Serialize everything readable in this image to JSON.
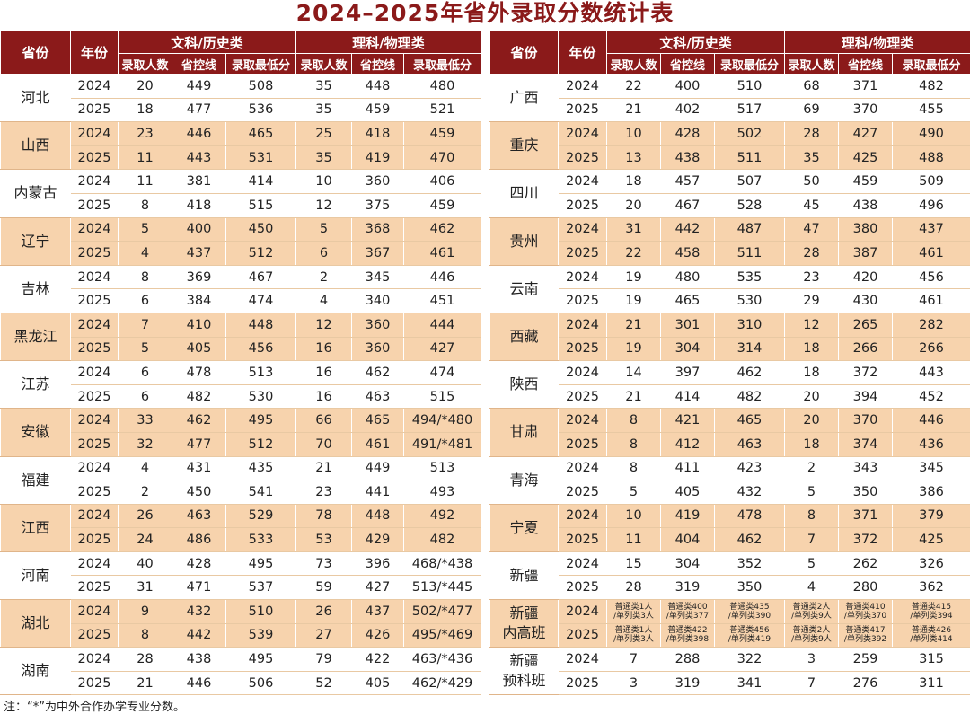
{
  "title": "2024–2025年省外录取分数统计表",
  "note": "注：“*”为中外合作办学专业分数。",
  "colors": {
    "header_bg": "#8b1a1a",
    "title": "#8b1a1a",
    "band": "#f7d3ad"
  },
  "headers": {
    "province": "省份",
    "year": "年份",
    "liberal": "文科/历史类",
    "science": "理科/物理类",
    "admitted": "录取人数",
    "control_line": "省控线",
    "min_score": "录取最低分"
  },
  "left_table": [
    {
      "province": "河北",
      "rows": [
        [
          "2024",
          "20",
          "449",
          "508",
          "35",
          "448",
          "480"
        ],
        [
          "2025",
          "18",
          "477",
          "536",
          "35",
          "459",
          "521"
        ]
      ]
    },
    {
      "province": "山西",
      "rows": [
        [
          "2024",
          "23",
          "446",
          "465",
          "25",
          "418",
          "459"
        ],
        [
          "2025",
          "11",
          "443",
          "531",
          "35",
          "419",
          "470"
        ]
      ]
    },
    {
      "province": "内蒙古",
      "rows": [
        [
          "2024",
          "11",
          "381",
          "414",
          "10",
          "360",
          "406"
        ],
        [
          "2025",
          "8",
          "418",
          "515",
          "12",
          "375",
          "459"
        ]
      ]
    },
    {
      "province": "辽宁",
      "rows": [
        [
          "2024",
          "5",
          "400",
          "450",
          "5",
          "368",
          "462"
        ],
        [
          "2025",
          "4",
          "437",
          "512",
          "6",
          "367",
          "461"
        ]
      ]
    },
    {
      "province": "吉林",
      "rows": [
        [
          "2024",
          "8",
          "369",
          "467",
          "2",
          "345",
          "446"
        ],
        [
          "2025",
          "6",
          "384",
          "474",
          "4",
          "340",
          "451"
        ]
      ]
    },
    {
      "province": "黑龙江",
      "rows": [
        [
          "2024",
          "7",
          "410",
          "448",
          "12",
          "360",
          "444"
        ],
        [
          "2025",
          "5",
          "405",
          "456",
          "16",
          "360",
          "427"
        ]
      ]
    },
    {
      "province": "江苏",
      "rows": [
        [
          "2024",
          "6",
          "478",
          "513",
          "16",
          "462",
          "474"
        ],
        [
          "2025",
          "6",
          "482",
          "530",
          "16",
          "463",
          "515"
        ]
      ]
    },
    {
      "province": "安徽",
      "rows": [
        [
          "2024",
          "33",
          "462",
          "495",
          "66",
          "465",
          "494/*480"
        ],
        [
          "2025",
          "32",
          "477",
          "512",
          "70",
          "461",
          "491/*481"
        ]
      ]
    },
    {
      "province": "福建",
      "rows": [
        [
          "2024",
          "4",
          "431",
          "435",
          "21",
          "449",
          "513"
        ],
        [
          "2025",
          "2",
          "450",
          "541",
          "23",
          "441",
          "493"
        ]
      ]
    },
    {
      "province": "江西",
      "rows": [
        [
          "2024",
          "26",
          "463",
          "529",
          "78",
          "448",
          "492"
        ],
        [
          "2025",
          "24",
          "486",
          "533",
          "53",
          "429",
          "482"
        ]
      ]
    },
    {
      "province": "河南",
      "rows": [
        [
          "2024",
          "40",
          "428",
          "495",
          "73",
          "396",
          "468/*438"
        ],
        [
          "2025",
          "31",
          "471",
          "537",
          "59",
          "427",
          "513/*445"
        ]
      ]
    },
    {
      "province": "湖北",
      "rows": [
        [
          "2024",
          "9",
          "432",
          "510",
          "26",
          "437",
          "502/*477"
        ],
        [
          "2025",
          "8",
          "442",
          "539",
          "27",
          "426",
          "495/*469"
        ]
      ]
    },
    {
      "province": "湖南",
      "rows": [
        [
          "2024",
          "28",
          "438",
          "495",
          "79",
          "422",
          "463/*436"
        ],
        [
          "2025",
          "21",
          "446",
          "506",
          "52",
          "405",
          "462/*429"
        ]
      ]
    }
  ],
  "right_table": [
    {
      "province": "广西",
      "rows": [
        [
          "2024",
          "22",
          "400",
          "510",
          "68",
          "371",
          "482"
        ],
        [
          "2025",
          "21",
          "402",
          "517",
          "69",
          "370",
          "455"
        ]
      ]
    },
    {
      "province": "重庆",
      "rows": [
        [
          "2024",
          "10",
          "428",
          "502",
          "28",
          "427",
          "490"
        ],
        [
          "2025",
          "13",
          "438",
          "511",
          "35",
          "425",
          "488"
        ]
      ]
    },
    {
      "province": "四川",
      "rows": [
        [
          "2024",
          "18",
          "457",
          "507",
          "50",
          "459",
          "509"
        ],
        [
          "2025",
          "20",
          "467",
          "528",
          "45",
          "438",
          "496"
        ]
      ]
    },
    {
      "province": "贵州",
      "rows": [
        [
          "2024",
          "31",
          "442",
          "487",
          "47",
          "380",
          "437"
        ],
        [
          "2025",
          "22",
          "458",
          "511",
          "28",
          "387",
          "461"
        ]
      ]
    },
    {
      "province": "云南",
      "rows": [
        [
          "2024",
          "19",
          "480",
          "535",
          "23",
          "420",
          "456"
        ],
        [
          "2025",
          "19",
          "465",
          "530",
          "29",
          "430",
          "461"
        ]
      ]
    },
    {
      "province": "西藏",
      "rows": [
        [
          "2024",
          "21",
          "301",
          "310",
          "12",
          "265",
          "282"
        ],
        [
          "2025",
          "19",
          "304",
          "314",
          "18",
          "266",
          "266"
        ]
      ]
    },
    {
      "province": "陕西",
      "rows": [
        [
          "2024",
          "14",
          "397",
          "462",
          "18",
          "372",
          "443"
        ],
        [
          "2025",
          "21",
          "414",
          "482",
          "20",
          "394",
          "452"
        ]
      ]
    },
    {
      "province": "甘肃",
      "rows": [
        [
          "2024",
          "8",
          "421",
          "465",
          "20",
          "370",
          "446"
        ],
        [
          "2025",
          "8",
          "412",
          "463",
          "18",
          "374",
          "436"
        ]
      ]
    },
    {
      "province": "青海",
      "rows": [
        [
          "2024",
          "8",
          "411",
          "423",
          "2",
          "343",
          "345"
        ],
        [
          "2025",
          "5",
          "405",
          "432",
          "5",
          "350",
          "386"
        ]
      ]
    },
    {
      "province": "宁夏",
      "rows": [
        [
          "2024",
          "10",
          "419",
          "478",
          "8",
          "371",
          "379"
        ],
        [
          "2025",
          "11",
          "404",
          "462",
          "7",
          "372",
          "425"
        ]
      ]
    },
    {
      "province": "新疆",
      "rows": [
        [
          "2024",
          "15",
          "304",
          "352",
          "5",
          "262",
          "326"
        ],
        [
          "2025",
          "28",
          "319",
          "350",
          "4",
          "280",
          "362"
        ]
      ]
    },
    {
      "province": "新疆内高班",
      "tiny": true,
      "rows": [
        [
          "2024",
          "普通类1人/单列类3人",
          "普通类400/单列类377",
          "普通类435/单列类390",
          "普通类2人/单列类9人",
          "普通类410/单列类370",
          "普通类415/单列类394"
        ],
        [
          "2025",
          "普通类1人/单列类3人",
          "普通类422/单列类398",
          "普通类456/单列类419",
          "普通类2人/单列类9人",
          "普通类417/单列类392",
          "普通类426/单列类414"
        ]
      ]
    },
    {
      "province": "新疆预科班",
      "rows": [
        [
          "2024",
          "7",
          "288",
          "322",
          "3",
          "259",
          "315"
        ],
        [
          "2025",
          "3",
          "319",
          "341",
          "7",
          "276",
          "311"
        ]
      ]
    }
  ]
}
